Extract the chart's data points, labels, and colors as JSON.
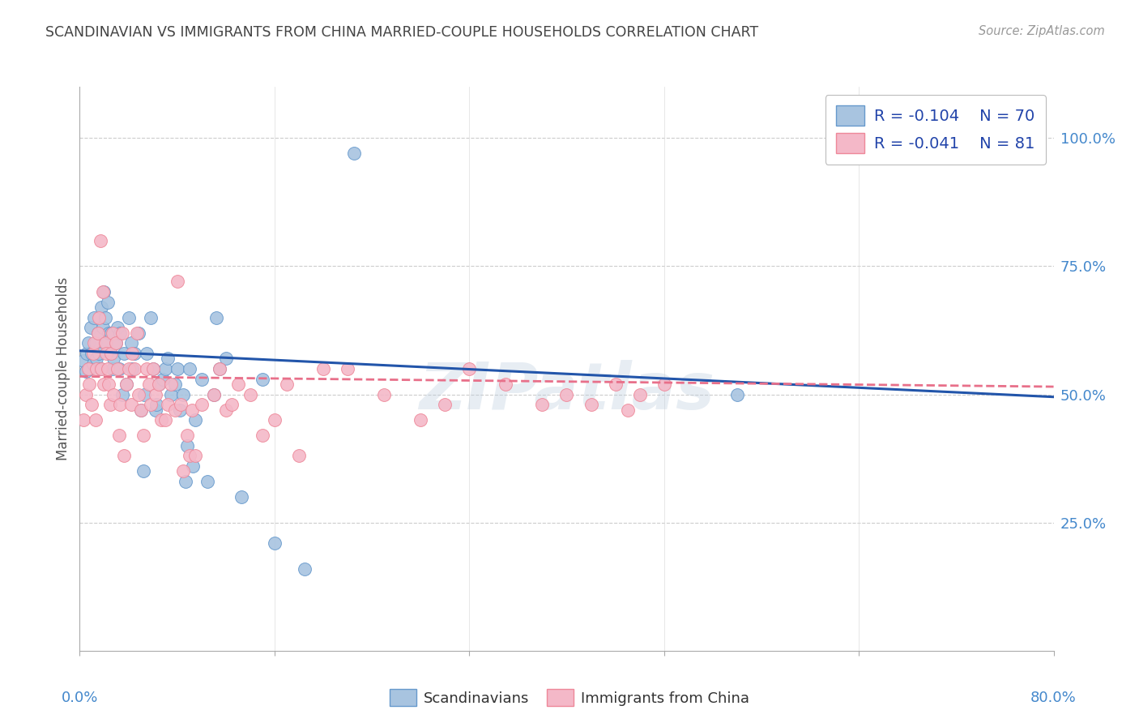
{
  "title": "SCANDINAVIAN VS IMMIGRANTS FROM CHINA MARRIED-COUPLE HOUSEHOLDS CORRELATION CHART",
  "source": "Source: ZipAtlas.com",
  "ylabel": "Married-couple Households",
  "legend_labels": [
    "Scandinavians",
    "Immigrants from China"
  ],
  "legend_r_n": [
    {
      "R": "-0.104",
      "N": "70"
    },
    {
      "R": "-0.041",
      "N": "81"
    }
  ],
  "scatter_blue": [
    [
      0.003,
      0.565
    ],
    [
      0.005,
      0.545
    ],
    [
      0.006,
      0.58
    ],
    [
      0.007,
      0.6
    ],
    [
      0.008,
      0.55
    ],
    [
      0.009,
      0.63
    ],
    [
      0.01,
      0.58
    ],
    [
      0.011,
      0.56
    ],
    [
      0.012,
      0.65
    ],
    [
      0.013,
      0.6
    ],
    [
      0.014,
      0.57
    ],
    [
      0.015,
      0.62
    ],
    [
      0.016,
      0.58
    ],
    [
      0.017,
      0.55
    ],
    [
      0.018,
      0.67
    ],
    [
      0.019,
      0.63
    ],
    [
      0.02,
      0.7
    ],
    [
      0.021,
      0.65
    ],
    [
      0.022,
      0.6
    ],
    [
      0.023,
      0.68
    ],
    [
      0.024,
      0.62
    ],
    [
      0.025,
      0.58
    ],
    [
      0.026,
      0.62
    ],
    [
      0.027,
      0.55
    ],
    [
      0.028,
      0.57
    ],
    [
      0.03,
      0.6
    ],
    [
      0.031,
      0.63
    ],
    [
      0.032,
      0.55
    ],
    [
      0.033,
      0.62
    ],
    [
      0.035,
      0.5
    ],
    [
      0.036,
      0.58
    ],
    [
      0.038,
      0.52
    ],
    [
      0.04,
      0.65
    ],
    [
      0.042,
      0.6
    ],
    [
      0.043,
      0.55
    ],
    [
      0.045,
      0.58
    ],
    [
      0.048,
      0.62
    ],
    [
      0.05,
      0.47
    ],
    [
      0.052,
      0.35
    ],
    [
      0.053,
      0.5
    ],
    [
      0.055,
      0.58
    ],
    [
      0.058,
      0.65
    ],
    [
      0.06,
      0.55
    ],
    [
      0.062,
      0.47
    ],
    [
      0.063,
      0.48
    ],
    [
      0.065,
      0.52
    ],
    [
      0.068,
      0.53
    ],
    [
      0.07,
      0.55
    ],
    [
      0.072,
      0.57
    ],
    [
      0.075,
      0.5
    ],
    [
      0.078,
      0.52
    ],
    [
      0.08,
      0.55
    ],
    [
      0.082,
      0.47
    ],
    [
      0.085,
      0.5
    ],
    [
      0.087,
      0.33
    ],
    [
      0.088,
      0.4
    ],
    [
      0.09,
      0.55
    ],
    [
      0.093,
      0.36
    ],
    [
      0.095,
      0.45
    ],
    [
      0.1,
      0.53
    ],
    [
      0.105,
      0.33
    ],
    [
      0.11,
      0.5
    ],
    [
      0.112,
      0.65
    ],
    [
      0.115,
      0.55
    ],
    [
      0.12,
      0.57
    ],
    [
      0.133,
      0.3
    ],
    [
      0.15,
      0.53
    ],
    [
      0.16,
      0.21
    ],
    [
      0.185,
      0.16
    ],
    [
      0.225,
      0.97
    ],
    [
      0.54,
      0.5
    ]
  ],
  "scatter_pink": [
    [
      0.003,
      0.45
    ],
    [
      0.005,
      0.5
    ],
    [
      0.007,
      0.55
    ],
    [
      0.008,
      0.52
    ],
    [
      0.01,
      0.48
    ],
    [
      0.011,
      0.58
    ],
    [
      0.012,
      0.6
    ],
    [
      0.013,
      0.45
    ],
    [
      0.014,
      0.55
    ],
    [
      0.015,
      0.62
    ],
    [
      0.016,
      0.65
    ],
    [
      0.017,
      0.8
    ],
    [
      0.018,
      0.55
    ],
    [
      0.019,
      0.7
    ],
    [
      0.02,
      0.52
    ],
    [
      0.021,
      0.6
    ],
    [
      0.022,
      0.58
    ],
    [
      0.023,
      0.55
    ],
    [
      0.024,
      0.52
    ],
    [
      0.025,
      0.48
    ],
    [
      0.026,
      0.58
    ],
    [
      0.027,
      0.62
    ],
    [
      0.028,
      0.5
    ],
    [
      0.03,
      0.6
    ],
    [
      0.031,
      0.55
    ],
    [
      0.032,
      0.42
    ],
    [
      0.033,
      0.48
    ],
    [
      0.035,
      0.62
    ],
    [
      0.036,
      0.38
    ],
    [
      0.038,
      0.52
    ],
    [
      0.04,
      0.55
    ],
    [
      0.042,
      0.48
    ],
    [
      0.043,
      0.58
    ],
    [
      0.045,
      0.55
    ],
    [
      0.047,
      0.62
    ],
    [
      0.048,
      0.5
    ],
    [
      0.05,
      0.47
    ],
    [
      0.052,
      0.42
    ],
    [
      0.055,
      0.55
    ],
    [
      0.057,
      0.52
    ],
    [
      0.058,
      0.48
    ],
    [
      0.06,
      0.55
    ],
    [
      0.062,
      0.5
    ],
    [
      0.065,
      0.52
    ],
    [
      0.067,
      0.45
    ],
    [
      0.07,
      0.45
    ],
    [
      0.072,
      0.48
    ],
    [
      0.075,
      0.52
    ],
    [
      0.078,
      0.47
    ],
    [
      0.08,
      0.72
    ],
    [
      0.083,
      0.48
    ],
    [
      0.085,
      0.35
    ],
    [
      0.088,
      0.42
    ],
    [
      0.09,
      0.38
    ],
    [
      0.092,
      0.47
    ],
    [
      0.095,
      0.38
    ],
    [
      0.1,
      0.48
    ],
    [
      0.11,
      0.5
    ],
    [
      0.115,
      0.55
    ],
    [
      0.12,
      0.47
    ],
    [
      0.125,
      0.48
    ],
    [
      0.13,
      0.52
    ],
    [
      0.14,
      0.5
    ],
    [
      0.15,
      0.42
    ],
    [
      0.16,
      0.45
    ],
    [
      0.17,
      0.52
    ],
    [
      0.18,
      0.38
    ],
    [
      0.2,
      0.55
    ],
    [
      0.22,
      0.55
    ],
    [
      0.25,
      0.5
    ],
    [
      0.28,
      0.45
    ],
    [
      0.3,
      0.48
    ],
    [
      0.32,
      0.55
    ],
    [
      0.35,
      0.52
    ],
    [
      0.38,
      0.48
    ],
    [
      0.4,
      0.5
    ],
    [
      0.42,
      0.48
    ],
    [
      0.44,
      0.52
    ],
    [
      0.45,
      0.47
    ],
    [
      0.46,
      0.5
    ],
    [
      0.48,
      0.52
    ]
  ],
  "blue_line": {
    "x0": 0.0,
    "y0": 0.585,
    "x1": 0.8,
    "y1": 0.495
  },
  "pink_line": {
    "x0": 0.0,
    "y0": 0.535,
    "x1": 0.8,
    "y1": 0.515
  },
  "scatter_color_blue": "#a8c4e0",
  "scatter_color_pink": "#f4b8c8",
  "line_color_blue": "#2255aa",
  "line_color_pink": "#e8708a",
  "grid_color": "#cccccc",
  "watermark": "ZIPatlas",
  "title_color": "#444444",
  "source_color": "#999999",
  "yaxis_tick_color": "#4488cc",
  "xaxis_tick_color": "#4488cc",
  "xlim": [
    0.0,
    0.8
  ],
  "ylim": [
    0.0,
    1.1
  ],
  "ytick_vals": [
    0.25,
    0.5,
    0.75,
    1.0
  ],
  "xtick_minor": [
    0.16,
    0.32,
    0.48,
    0.64
  ],
  "legend_patch_blue": "#a8c4e0",
  "legend_patch_pink": "#f4b8c8",
  "legend_patch_edge_blue": "#6699cc",
  "legend_patch_edge_pink": "#ee8899"
}
